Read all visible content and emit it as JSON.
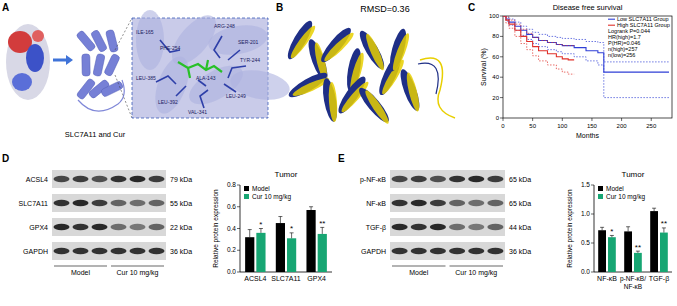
{
  "figure": {
    "panel_labels": [
      "A",
      "B",
      "C",
      "D",
      "E"
    ],
    "docking": {
      "caption": "SLC7A11 and Cur",
      "residues": [
        "ILE-165",
        "PHE-254",
        "ARG-248",
        "SER-201",
        "TYR-244",
        "LEU-385",
        "LEU-392",
        "ALA-143",
        "VAL-341",
        "LEU-249"
      ]
    },
    "alignment": {
      "label": "RMSD=0.36"
    },
    "blots": [
      {
        "rows": [
          {
            "protein": "ACSL4",
            "size": "79 kDa"
          },
          {
            "protein": "SLC7A11",
            "size": "55 kDa"
          },
          {
            "protein": "GPX4",
            "size": "22 kDa"
          },
          {
            "protein": "GAPDH",
            "size": "36 kDa"
          }
        ],
        "groups": [
          "Model",
          "Cur 10 mg/kg"
        ]
      },
      {
        "rows": [
          {
            "protein": "p-NF-κB",
            "size": "65 kDa"
          },
          {
            "protein": "NF-κB",
            "size": "65 kDa"
          },
          {
            "protein": "TGF-β",
            "size": "44 kDa"
          },
          {
            "protein": "GAPDH",
            "size": "36 kDa"
          }
        ],
        "groups": [
          "Model",
          "Cur 10 mg/kg"
        ]
      }
    ]
  },
  "chart_data": [
    {
      "type": "step",
      "title": "Disease free survival",
      "x_label": "Months",
      "y_label": "Survival (%)",
      "xlim": [
        0,
        285
      ],
      "xticks": [
        0,
        50,
        100,
        150,
        200,
        250
      ],
      "ylim": [
        0,
        100
      ],
      "yticks": [
        0,
        20,
        40,
        60,
        80,
        100
      ],
      "legend": "upper right",
      "annotations": [
        "Logrank P=0.044",
        "HR(high)=1.7",
        "P(HR)=0.046",
        "n(high)=257",
        "n(low)=256"
      ],
      "series": [
        {
          "name": "Low SLC7A11 Group",
          "color": "#2f3fd6",
          "line_style": "solid",
          "x": [
            0,
            5,
            10,
            20,
            30,
            40,
            50,
            60,
            75,
            90,
            100,
            120,
            140,
            160,
            170,
            280
          ],
          "values": [
            100,
            97,
            94,
            90,
            86,
            82,
            79,
            76,
            74,
            72,
            71,
            69,
            66,
            64,
            45,
            45
          ],
          "lower": [
            100,
            95,
            91,
            86,
            81,
            77,
            73,
            70,
            67,
            65,
            63,
            60,
            56,
            52,
            20,
            20
          ],
          "upper": [
            100,
            99,
            97,
            94,
            90,
            87,
            84,
            82,
            80,
            79,
            78,
            77,
            75,
            74,
            55,
            55
          ]
        },
        {
          "name": "High SLC7A11 Group",
          "color": "#e0302a",
          "line_style": "solid",
          "x": [
            0,
            5,
            10,
            20,
            30,
            40,
            50,
            60,
            75,
            90,
            100,
            110,
            120
          ],
          "values": [
            100,
            96,
            92,
            86,
            80,
            75,
            70,
            66,
            63,
            60,
            58,
            57,
            57
          ],
          "lower": [
            100,
            93,
            88,
            80,
            73,
            67,
            61,
            56,
            52,
            48,
            45,
            43,
            43
          ],
          "upper": [
            100,
            99,
            96,
            92,
            87,
            83,
            79,
            76,
            74,
            72,
            71,
            71,
            71
          ]
        }
      ]
    },
    {
      "type": "bar",
      "title": "Tumor",
      "y_label": "Relative protein expression",
      "categories": [
        "ACSL4",
        "SLC7A11",
        "GPX4"
      ],
      "ylim": [
        0,
        0.8
      ],
      "yticks": [
        {
          "value": 0,
          "label": "0.0"
        },
        0.2,
        0.4,
        0.6,
        0.8
      ],
      "legend": "upper left",
      "series": [
        {
          "name": "Model",
          "color": "#000000",
          "values": [
            0.32,
            0.45,
            0.57
          ],
          "errors": [
            0.07,
            0.06,
            0.03
          ]
        },
        {
          "name": "Cur 10 mg/kg",
          "color": "#17a673",
          "values": [
            0.36,
            0.31,
            0.35
          ],
          "errors": [
            0.04,
            0.05,
            0.06
          ],
          "significance": [
            "*",
            "*",
            "**"
          ]
        }
      ]
    },
    {
      "type": "bar",
      "title": "Tumor",
      "y_label": "Relative protein expression",
      "categories": [
        "NF-κB",
        "p-NF-κB/ NF-κB",
        "TGF-β"
      ],
      "ylim": [
        0,
        1.5
      ],
      "yticks": [
        {
          "value": 0,
          "label": "0.0"
        },
        0.5,
        {
          "value": 1,
          "label": "1.0"
        },
        1.5
      ],
      "legend": "upper left",
      "series": [
        {
          "name": "Model",
          "color": "#000000",
          "values": [
            0.72,
            0.7,
            1.05
          ],
          "errors": [
            0.05,
            0.08,
            0.05
          ]
        },
        {
          "name": "Cur 10 mg/kg",
          "color": "#17a673",
          "values": [
            0.6,
            0.33,
            0.68
          ],
          "errors": [
            0.03,
            0.03,
            0.08
          ],
          "significance": [
            "*",
            "**",
            "**"
          ]
        }
      ]
    }
  ]
}
